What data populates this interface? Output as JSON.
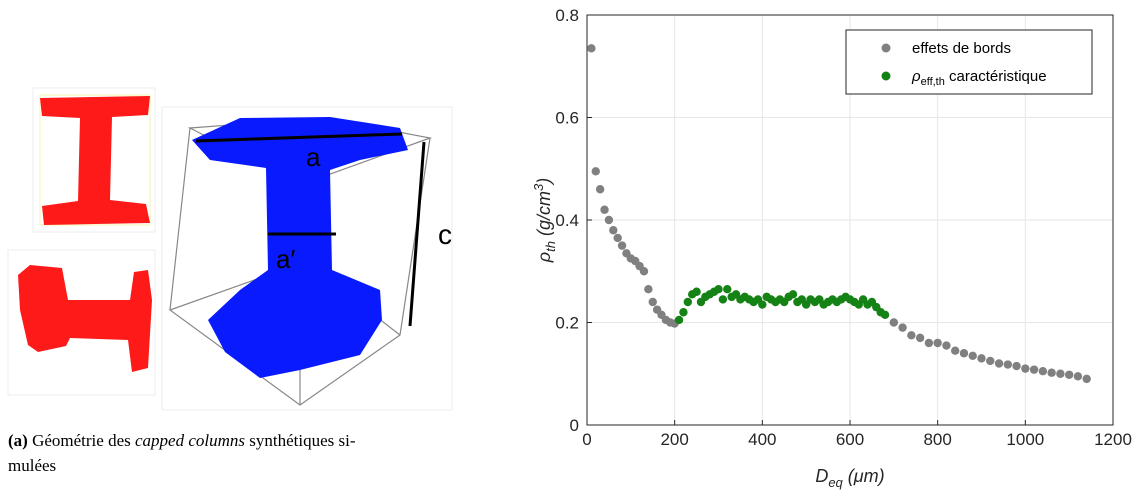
{
  "figure": {
    "left": {
      "labels": {
        "a": "a",
        "a_prime": "a′",
        "c": "c"
      },
      "caption": {
        "label": "(a)",
        "text1": " Géométrie des ",
        "italic": "capped columns",
        "text2": " synthétiques si-",
        "text3": "mulées"
      }
    },
    "chart_data": {
      "type": "scatter",
      "xlabel": {
        "main": "D",
        "sub": "eq",
        "rest": " (μm)"
      },
      "ylabel": {
        "main": "ρ",
        "sub": "th",
        "rest": " (g/cm",
        "sup": "3",
        "close": ")"
      },
      "xlim": [
        0,
        1200
      ],
      "xticks": [
        0,
        200,
        400,
        600,
        800,
        1000,
        1200
      ],
      "ylim": [
        0,
        0.8
      ],
      "yticks": [
        0,
        0.2,
        0.4,
        0.6,
        0.8
      ],
      "grid": true,
      "legend": "upper right",
      "series": [
        {
          "name": "effets de bords",
          "color": "#808080",
          "x": [
            10,
            20,
            30,
            40,
            50,
            60,
            70,
            80,
            90,
            100,
            110,
            120,
            130,
            140,
            150,
            160,
            170,
            180,
            190,
            200,
            700,
            720,
            740,
            760,
            780,
            800,
            820,
            840,
            860,
            880,
            900,
            920,
            940,
            960,
            980,
            1000,
            1020,
            1040,
            1060,
            1080,
            1100,
            1120,
            1140
          ],
          "values": [
            0.735,
            0.495,
            0.46,
            0.42,
            0.4,
            0.38,
            0.365,
            0.35,
            0.335,
            0.325,
            0.32,
            0.31,
            0.3,
            0.265,
            0.24,
            0.225,
            0.215,
            0.205,
            0.2,
            0.198,
            0.2,
            0.19,
            0.175,
            0.17,
            0.16,
            0.16,
            0.155,
            0.145,
            0.14,
            0.135,
            0.13,
            0.125,
            0.12,
            0.118,
            0.115,
            0.11,
            0.108,
            0.105,
            0.102,
            0.1,
            0.098,
            0.095,
            0.09
          ]
        },
        {
          "name": "ρ",
          "name_sub": "eff,th",
          "name_rest": " caractéristique",
          "color": "#148214",
          "x": [
            210,
            220,
            230,
            240,
            250,
            260,
            270,
            280,
            290,
            300,
            310,
            320,
            330,
            340,
            350,
            360,
            370,
            380,
            390,
            400,
            410,
            420,
            430,
            440,
            450,
            460,
            470,
            480,
            490,
            500,
            510,
            520,
            530,
            540,
            550,
            560,
            570,
            580,
            590,
            600,
            610,
            620,
            630,
            640,
            650,
            660,
            670,
            680
          ],
          "values": [
            0.205,
            0.22,
            0.24,
            0.255,
            0.26,
            0.24,
            0.25,
            0.255,
            0.26,
            0.265,
            0.245,
            0.265,
            0.25,
            0.255,
            0.245,
            0.25,
            0.245,
            0.24,
            0.245,
            0.235,
            0.25,
            0.245,
            0.24,
            0.245,
            0.24,
            0.25,
            0.255,
            0.24,
            0.245,
            0.235,
            0.245,
            0.24,
            0.245,
            0.235,
            0.24,
            0.245,
            0.24,
            0.245,
            0.25,
            0.245,
            0.24,
            0.235,
            0.245,
            0.235,
            0.24,
            0.23,
            0.22,
            0.215
          ]
        }
      ]
    }
  }
}
